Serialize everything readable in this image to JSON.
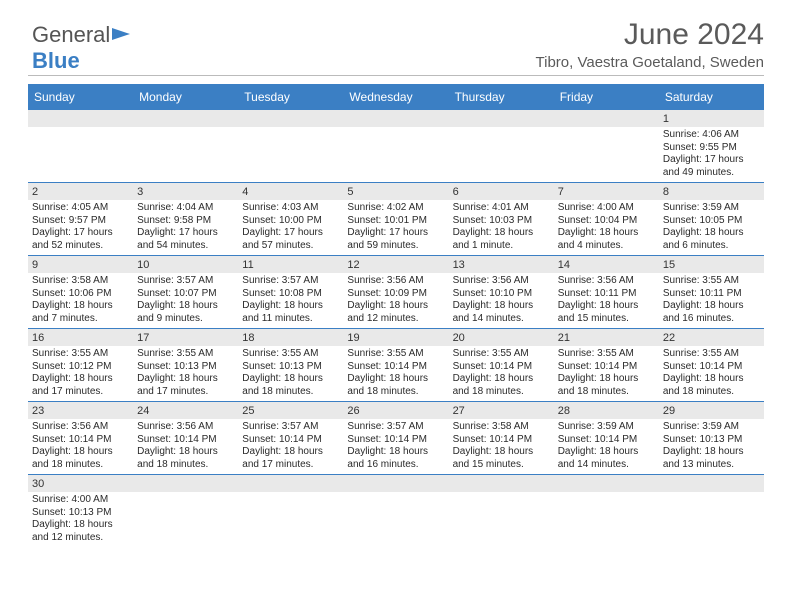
{
  "logo": {
    "part1": "General",
    "part2": "Blue"
  },
  "title": "June 2024",
  "location": "Tibro, Vaestra Goetaland, Sweden",
  "dayNames": [
    "Sunday",
    "Monday",
    "Tuesday",
    "Wednesday",
    "Thursday",
    "Friday",
    "Saturday"
  ],
  "colors": {
    "header_bg": "#3b7fc4",
    "header_text": "#ffffff",
    "daynum_bg": "#e9e9e9",
    "rule": "#3b7fc4",
    "text": "#2a2a2a"
  },
  "weeks": [
    {
      "nums": [
        "",
        "",
        "",
        "",
        "",
        "",
        "1"
      ],
      "cells": [
        null,
        null,
        null,
        null,
        null,
        null,
        {
          "sunrise": "Sunrise: 4:06 AM",
          "sunset": "Sunset: 9:55 PM",
          "daylight1": "Daylight: 17 hours",
          "daylight2": "and 49 minutes."
        }
      ]
    },
    {
      "nums": [
        "2",
        "3",
        "4",
        "5",
        "6",
        "7",
        "8"
      ],
      "cells": [
        {
          "sunrise": "Sunrise: 4:05 AM",
          "sunset": "Sunset: 9:57 PM",
          "daylight1": "Daylight: 17 hours",
          "daylight2": "and 52 minutes."
        },
        {
          "sunrise": "Sunrise: 4:04 AM",
          "sunset": "Sunset: 9:58 PM",
          "daylight1": "Daylight: 17 hours",
          "daylight2": "and 54 minutes."
        },
        {
          "sunrise": "Sunrise: 4:03 AM",
          "sunset": "Sunset: 10:00 PM",
          "daylight1": "Daylight: 17 hours",
          "daylight2": "and 57 minutes."
        },
        {
          "sunrise": "Sunrise: 4:02 AM",
          "sunset": "Sunset: 10:01 PM",
          "daylight1": "Daylight: 17 hours",
          "daylight2": "and 59 minutes."
        },
        {
          "sunrise": "Sunrise: 4:01 AM",
          "sunset": "Sunset: 10:03 PM",
          "daylight1": "Daylight: 18 hours",
          "daylight2": "and 1 minute."
        },
        {
          "sunrise": "Sunrise: 4:00 AM",
          "sunset": "Sunset: 10:04 PM",
          "daylight1": "Daylight: 18 hours",
          "daylight2": "and 4 minutes."
        },
        {
          "sunrise": "Sunrise: 3:59 AM",
          "sunset": "Sunset: 10:05 PM",
          "daylight1": "Daylight: 18 hours",
          "daylight2": "and 6 minutes."
        }
      ]
    },
    {
      "nums": [
        "9",
        "10",
        "11",
        "12",
        "13",
        "14",
        "15"
      ],
      "cells": [
        {
          "sunrise": "Sunrise: 3:58 AM",
          "sunset": "Sunset: 10:06 PM",
          "daylight1": "Daylight: 18 hours",
          "daylight2": "and 7 minutes."
        },
        {
          "sunrise": "Sunrise: 3:57 AM",
          "sunset": "Sunset: 10:07 PM",
          "daylight1": "Daylight: 18 hours",
          "daylight2": "and 9 minutes."
        },
        {
          "sunrise": "Sunrise: 3:57 AM",
          "sunset": "Sunset: 10:08 PM",
          "daylight1": "Daylight: 18 hours",
          "daylight2": "and 11 minutes."
        },
        {
          "sunrise": "Sunrise: 3:56 AM",
          "sunset": "Sunset: 10:09 PM",
          "daylight1": "Daylight: 18 hours",
          "daylight2": "and 12 minutes."
        },
        {
          "sunrise": "Sunrise: 3:56 AM",
          "sunset": "Sunset: 10:10 PM",
          "daylight1": "Daylight: 18 hours",
          "daylight2": "and 14 minutes."
        },
        {
          "sunrise": "Sunrise: 3:56 AM",
          "sunset": "Sunset: 10:11 PM",
          "daylight1": "Daylight: 18 hours",
          "daylight2": "and 15 minutes."
        },
        {
          "sunrise": "Sunrise: 3:55 AM",
          "sunset": "Sunset: 10:11 PM",
          "daylight1": "Daylight: 18 hours",
          "daylight2": "and 16 minutes."
        }
      ]
    },
    {
      "nums": [
        "16",
        "17",
        "18",
        "19",
        "20",
        "21",
        "22"
      ],
      "cells": [
        {
          "sunrise": "Sunrise: 3:55 AM",
          "sunset": "Sunset: 10:12 PM",
          "daylight1": "Daylight: 18 hours",
          "daylight2": "and 17 minutes."
        },
        {
          "sunrise": "Sunrise: 3:55 AM",
          "sunset": "Sunset: 10:13 PM",
          "daylight1": "Daylight: 18 hours",
          "daylight2": "and 17 minutes."
        },
        {
          "sunrise": "Sunrise: 3:55 AM",
          "sunset": "Sunset: 10:13 PM",
          "daylight1": "Daylight: 18 hours",
          "daylight2": "and 18 minutes."
        },
        {
          "sunrise": "Sunrise: 3:55 AM",
          "sunset": "Sunset: 10:14 PM",
          "daylight1": "Daylight: 18 hours",
          "daylight2": "and 18 minutes."
        },
        {
          "sunrise": "Sunrise: 3:55 AM",
          "sunset": "Sunset: 10:14 PM",
          "daylight1": "Daylight: 18 hours",
          "daylight2": "and 18 minutes."
        },
        {
          "sunrise": "Sunrise: 3:55 AM",
          "sunset": "Sunset: 10:14 PM",
          "daylight1": "Daylight: 18 hours",
          "daylight2": "and 18 minutes."
        },
        {
          "sunrise": "Sunrise: 3:55 AM",
          "sunset": "Sunset: 10:14 PM",
          "daylight1": "Daylight: 18 hours",
          "daylight2": "and 18 minutes."
        }
      ]
    },
    {
      "nums": [
        "23",
        "24",
        "25",
        "26",
        "27",
        "28",
        "29"
      ],
      "cells": [
        {
          "sunrise": "Sunrise: 3:56 AM",
          "sunset": "Sunset: 10:14 PM",
          "daylight1": "Daylight: 18 hours",
          "daylight2": "and 18 minutes."
        },
        {
          "sunrise": "Sunrise: 3:56 AM",
          "sunset": "Sunset: 10:14 PM",
          "daylight1": "Daylight: 18 hours",
          "daylight2": "and 18 minutes."
        },
        {
          "sunrise": "Sunrise: 3:57 AM",
          "sunset": "Sunset: 10:14 PM",
          "daylight1": "Daylight: 18 hours",
          "daylight2": "and 17 minutes."
        },
        {
          "sunrise": "Sunrise: 3:57 AM",
          "sunset": "Sunset: 10:14 PM",
          "daylight1": "Daylight: 18 hours",
          "daylight2": "and 16 minutes."
        },
        {
          "sunrise": "Sunrise: 3:58 AM",
          "sunset": "Sunset: 10:14 PM",
          "daylight1": "Daylight: 18 hours",
          "daylight2": "and 15 minutes."
        },
        {
          "sunrise": "Sunrise: 3:59 AM",
          "sunset": "Sunset: 10:14 PM",
          "daylight1": "Daylight: 18 hours",
          "daylight2": "and 14 minutes."
        },
        {
          "sunrise": "Sunrise: 3:59 AM",
          "sunset": "Sunset: 10:13 PM",
          "daylight1": "Daylight: 18 hours",
          "daylight2": "and 13 minutes."
        }
      ]
    },
    {
      "nums": [
        "30",
        "",
        "",
        "",
        "",
        "",
        ""
      ],
      "cells": [
        {
          "sunrise": "Sunrise: 4:00 AM",
          "sunset": "Sunset: 10:13 PM",
          "daylight1": "Daylight: 18 hours",
          "daylight2": "and 12 minutes."
        },
        null,
        null,
        null,
        null,
        null,
        null
      ]
    }
  ]
}
